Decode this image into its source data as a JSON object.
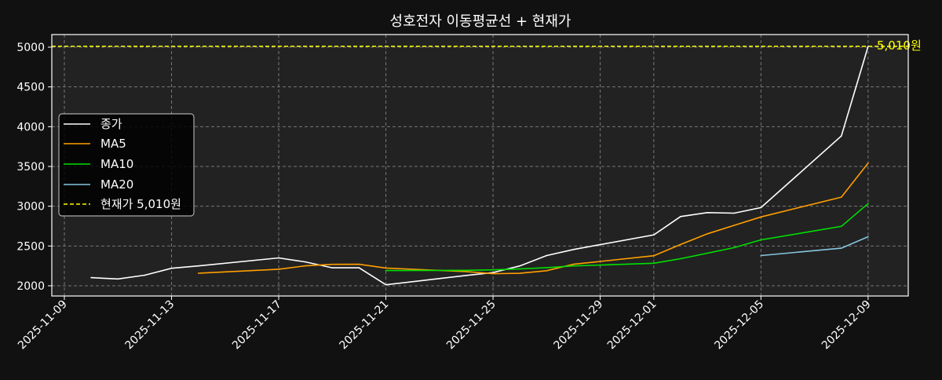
{
  "chart_data": {
    "type": "line",
    "title": "성호전자 이동평균선 + 현재가",
    "xlabel": "",
    "ylabel": "",
    "ylim": [
      1870,
      5150
    ],
    "grid": true,
    "legend_position": "center-left",
    "x": [
      "2025-11-10",
      "2025-11-11",
      "2025-11-12",
      "2025-11-13",
      "2025-11-14",
      "2025-11-17",
      "2025-11-18",
      "2025-11-19",
      "2025-11-20",
      "2025-11-21",
      "2025-11-24",
      "2025-11-25",
      "2025-11-26",
      "2025-11-27",
      "2025-11-28",
      "2025-12-01",
      "2025-12-02",
      "2025-12-03",
      "2025-12-04",
      "2025-12-05",
      "2025-12-08",
      "2025-12-09"
    ],
    "x_ticks": [
      "2025-11-09",
      "2025-11-13",
      "2025-11-17",
      "2025-11-21",
      "2025-11-25",
      "2025-11-29",
      "2025-12-01",
      "2025-12-05",
      "2025-12-09"
    ],
    "y_ticks": [
      2000,
      2500,
      3000,
      3500,
      4000,
      4500,
      5000
    ],
    "series": [
      {
        "name": "종가",
        "color": "#ffffff",
        "dash": false,
        "values": [
          2103,
          2086,
          2133,
          2220,
          2250,
          2350,
          2300,
          2226,
          2226,
          2013,
          2130,
          2166,
          2250,
          2380,
          2456,
          2640,
          2870,
          2920,
          2913,
          2983,
          3883,
          5010
        ]
      },
      {
        "name": "MA5",
        "color": "#ff9f00",
        "dash": false,
        "values": [
          null,
          null,
          null,
          null,
          2158,
          2208,
          2251,
          2269,
          2270,
          2223,
          2179,
          2152,
          2157,
          2189,
          2270,
          2378,
          2519,
          2653,
          2760,
          2865,
          3114,
          3542
        ]
      },
      {
        "name": "MA10",
        "color": "#00e000",
        "dash": false,
        "values": [
          null,
          null,
          null,
          null,
          null,
          null,
          null,
          null,
          null,
          2191,
          2194,
          2200,
          2212,
          2228,
          2250,
          2283,
          2340,
          2410,
          2480,
          2577,
          2747,
          3033
        ]
      },
      {
        "name": "MA20",
        "color": "#87c6e0",
        "dash": false,
        "values": [
          null,
          null,
          null,
          null,
          null,
          null,
          null,
          null,
          null,
          null,
          null,
          null,
          null,
          null,
          null,
          null,
          null,
          null,
          null,
          2380,
          2473,
          2617
        ]
      }
    ],
    "current_price": {
      "value": 5010,
      "label": "5,010원",
      "legend": "현재가 5,010원",
      "color": "#ffff00"
    }
  }
}
